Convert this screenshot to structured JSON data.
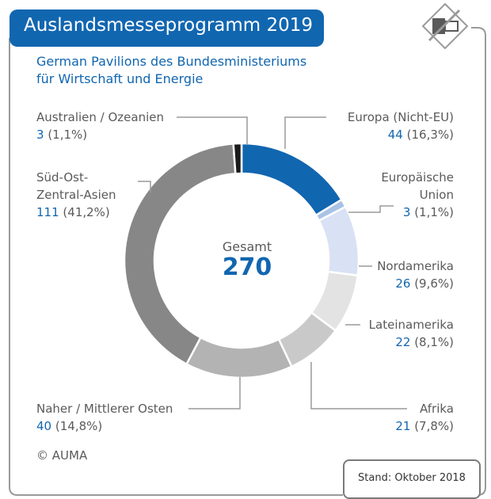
{
  "header": {
    "title": "Auslandsmesseprogramm 2019",
    "subtitle_line1": "German Pavilions des Bundesministeriums",
    "subtitle_line2": "für Wirtschaft und Energie"
  },
  "center": {
    "label": "Gesamt",
    "value": "270"
  },
  "footer": {
    "copyright": "© AUMA",
    "stand": "Stand: Oktober 2018"
  },
  "labels": {
    "europa_nicht_eu": {
      "name": "Europa (Nicht-EU)",
      "count": "44",
      "pct": "(16,3%)"
    },
    "eu": {
      "name1": "Europäische",
      "name2": "Union",
      "count": "3",
      "pct": "(1,1%)"
    },
    "nordamerika": {
      "name": "Nordamerika",
      "count": "26",
      "pct": "(9,6%)"
    },
    "lateinamerika": {
      "name": "Lateinamerika",
      "count": "22",
      "pct": "(8,1%)"
    },
    "afrika": {
      "name": "Afrika",
      "count": "21",
      "pct": "(7,8%)"
    },
    "nahost": {
      "name": "Naher / Mittlerer Osten",
      "count": "40",
      "pct": "(14,8%)"
    },
    "asien": {
      "name1": "Süd-Ost-",
      "name2": "Zentral-Asien",
      "count": "111",
      "pct": "(41,2%)"
    },
    "australien": {
      "name": "Australien / Ozeanien",
      "count": "3",
      "pct": "(1,1%)"
    }
  },
  "chart_data": {
    "type": "pie",
    "title": "Auslandsmesseprogramm 2019",
    "total": 270,
    "categories": [
      "Europa (Nicht-EU)",
      "Europäische Union",
      "Nordamerika",
      "Lateinamerika",
      "Afrika",
      "Naher / Mittlerer Osten",
      "Süd-Ost-Zentral-Asien",
      "Australien / Ozeanien"
    ],
    "values": [
      44,
      3,
      26,
      22,
      21,
      40,
      111,
      3
    ],
    "percentages": [
      16.3,
      1.1,
      9.6,
      8.1,
      7.8,
      14.8,
      41.2,
      1.1
    ],
    "colors": [
      "#1166b0",
      "#a9c3e6",
      "#d9e1f4",
      "#e3e3e3",
      "#c9c9c9",
      "#b3b3b3",
      "#878787",
      "#1a1a1a"
    ],
    "style": "donut"
  }
}
